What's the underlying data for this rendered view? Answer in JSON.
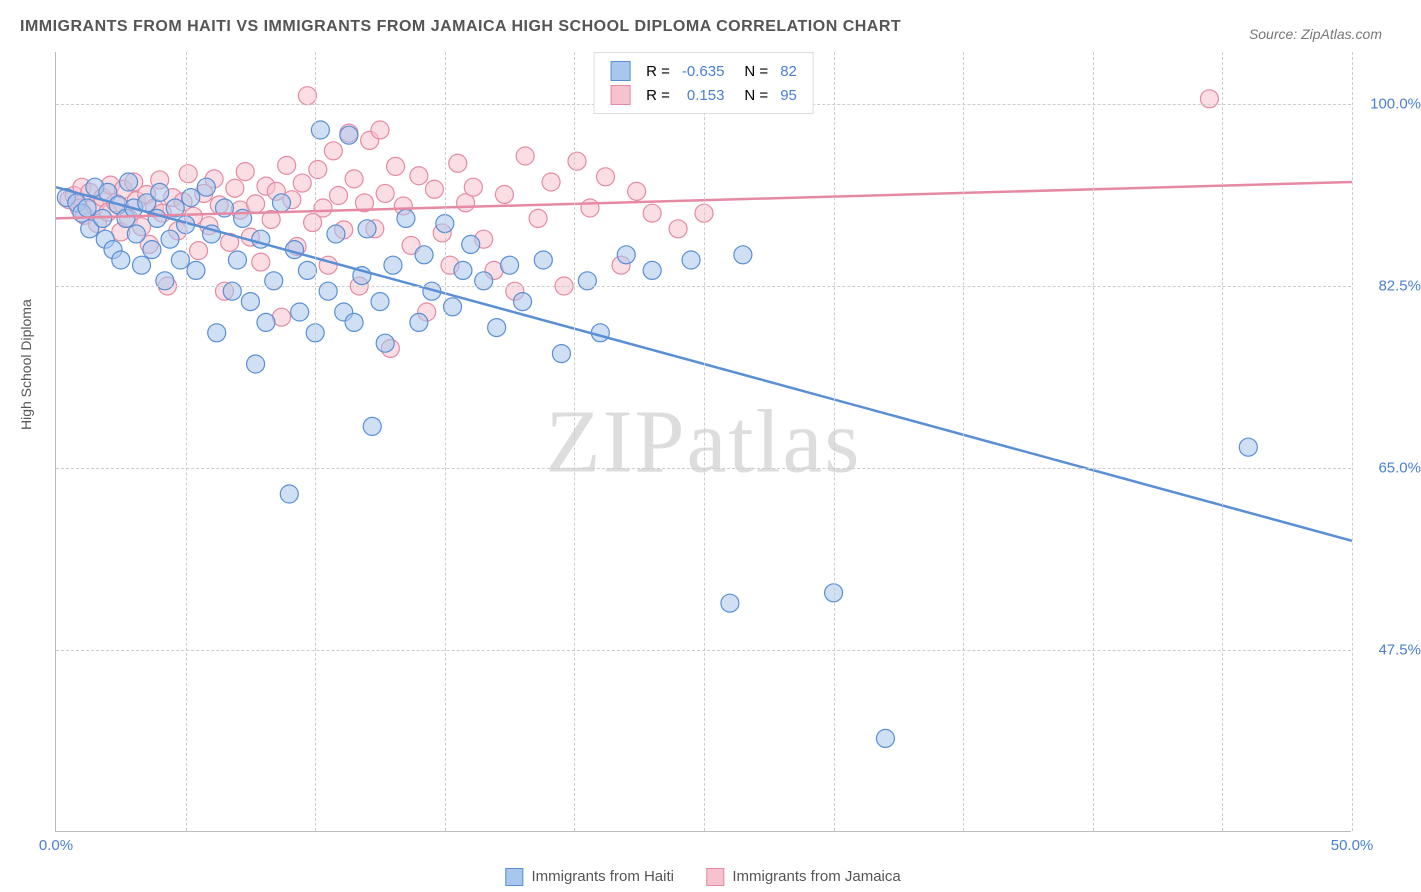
{
  "title": "IMMIGRANTS FROM HAITI VS IMMIGRANTS FROM JAMAICA HIGH SCHOOL DIPLOMA CORRELATION CHART",
  "source": "Source: ZipAtlas.com",
  "watermark": {
    "a": "ZIP",
    "b": "atlas"
  },
  "chart": {
    "type": "scatter",
    "ylabel": "High School Diploma",
    "xlim": [
      0,
      50
    ],
    "ylim": [
      30,
      105
    ],
    "yticks": [
      47.5,
      65.0,
      82.5,
      100.0
    ],
    "ytick_labels": [
      "47.5%",
      "65.0%",
      "82.5%",
      "100.0%"
    ],
    "xticks": [
      0,
      50
    ],
    "xtick_labels": [
      "0.0%",
      "50.0%"
    ],
    "xminor_step": 5,
    "grid_color": "#cccccc",
    "axis_color": "#bbbbbb",
    "tick_label_color": "#4a7fd4",
    "marker_radius": 9,
    "marker_opacity": 0.55,
    "series": [
      {
        "id": "haiti",
        "name": "Immigrants from Haiti",
        "fill": "#a8c7ec",
        "stroke": "#5a8fd6",
        "R": "-0.635",
        "N": "82",
        "trend": {
          "x1": 0,
          "y1": 92,
          "x2": 50,
          "y2": 58
        },
        "points": [
          [
            0.4,
            91
          ],
          [
            0.8,
            90.5
          ],
          [
            1.0,
            89.5
          ],
          [
            1.2,
            90
          ],
          [
            1.3,
            88
          ],
          [
            1.5,
            92
          ],
          [
            1.8,
            89
          ],
          [
            1.9,
            87
          ],
          [
            2.0,
            91.5
          ],
          [
            2.2,
            86
          ],
          [
            2.4,
            90.3
          ],
          [
            2.5,
            85
          ],
          [
            2.7,
            89
          ],
          [
            2.8,
            92.5
          ],
          [
            3.0,
            90
          ],
          [
            3.1,
            87.5
          ],
          [
            3.3,
            84.5
          ],
          [
            3.5,
            90.5
          ],
          [
            3.7,
            86
          ],
          [
            3.9,
            89
          ],
          [
            4.0,
            91.5
          ],
          [
            4.2,
            83
          ],
          [
            4.4,
            87
          ],
          [
            4.6,
            90
          ],
          [
            4.8,
            85
          ],
          [
            5.0,
            88.4
          ],
          [
            5.2,
            91
          ],
          [
            5.4,
            84
          ],
          [
            5.8,
            92
          ],
          [
            6.0,
            87.5
          ],
          [
            6.2,
            78
          ],
          [
            6.5,
            90
          ],
          [
            6.8,
            82
          ],
          [
            7.0,
            85
          ],
          [
            7.2,
            89
          ],
          [
            7.5,
            81
          ],
          [
            7.7,
            75
          ],
          [
            7.9,
            87
          ],
          [
            8.1,
            79
          ],
          [
            8.4,
            83
          ],
          [
            8.7,
            90.5
          ],
          [
            9.0,
            62.5
          ],
          [
            9.2,
            86
          ],
          [
            9.4,
            80
          ],
          [
            9.7,
            84
          ],
          [
            10.0,
            78
          ],
          [
            10.2,
            97.5
          ],
          [
            10.5,
            82
          ],
          [
            10.8,
            87.5
          ],
          [
            11.1,
            80
          ],
          [
            11.3,
            97
          ],
          [
            11.5,
            79
          ],
          [
            11.8,
            83.5
          ],
          [
            12.0,
            88
          ],
          [
            12.2,
            69
          ],
          [
            12.5,
            81
          ],
          [
            12.7,
            77
          ],
          [
            13.0,
            84.5
          ],
          [
            13.5,
            89
          ],
          [
            14.0,
            79
          ],
          [
            14.2,
            85.5
          ],
          [
            14.5,
            82
          ],
          [
            15.0,
            88.5
          ],
          [
            15.3,
            80.5
          ],
          [
            15.7,
            84
          ],
          [
            16.0,
            86.5
          ],
          [
            16.5,
            83
          ],
          [
            17.0,
            78.5
          ],
          [
            17.5,
            84.5
          ],
          [
            18.0,
            81
          ],
          [
            18.8,
            85
          ],
          [
            19.5,
            76
          ],
          [
            20.5,
            83
          ],
          [
            21.0,
            78
          ],
          [
            22.0,
            85.5
          ],
          [
            23.0,
            84
          ],
          [
            24.5,
            85
          ],
          [
            26.0,
            52
          ],
          [
            26.5,
            85.5
          ],
          [
            30.0,
            53
          ],
          [
            32.0,
            39
          ],
          [
            46.0,
            67
          ]
        ]
      },
      {
        "id": "jamaica",
        "name": "Immigrants from Jamaica",
        "fill": "#f5c2ce",
        "stroke": "#e68aa3",
        "R": "0.153",
        "N": "95",
        "trend": {
          "x1": 0,
          "y1": 89,
          "x2": 50,
          "y2": 92.5
        },
        "points": [
          [
            0.5,
            90.8
          ],
          [
            0.7,
            91.2
          ],
          [
            0.9,
            90
          ],
          [
            1.0,
            92
          ],
          [
            1.1,
            89.3
          ],
          [
            1.3,
            91.5
          ],
          [
            1.5,
            90.2
          ],
          [
            1.6,
            88.5
          ],
          [
            1.8,
            91
          ],
          [
            2.0,
            89.6
          ],
          [
            2.1,
            92.2
          ],
          [
            2.3,
            90.5
          ],
          [
            2.5,
            87.7
          ],
          [
            2.6,
            91.8
          ],
          [
            2.8,
            89
          ],
          [
            3.0,
            92.5
          ],
          [
            3.1,
            90.7
          ],
          [
            3.3,
            88.2
          ],
          [
            3.5,
            91.3
          ],
          [
            3.6,
            86.5
          ],
          [
            3.8,
            90
          ],
          [
            4.0,
            92.7
          ],
          [
            4.1,
            89.5
          ],
          [
            4.3,
            82.5
          ],
          [
            4.5,
            91
          ],
          [
            4.7,
            87.8
          ],
          [
            4.9,
            90.6
          ],
          [
            5.1,
            93.3
          ],
          [
            5.3,
            89.2
          ],
          [
            5.5,
            85.9
          ],
          [
            5.7,
            91.4
          ],
          [
            5.9,
            88.3
          ],
          [
            6.1,
            92.8
          ],
          [
            6.3,
            90.3
          ],
          [
            6.5,
            82
          ],
          [
            6.7,
            86.7
          ],
          [
            6.9,
            91.9
          ],
          [
            7.1,
            89.8
          ],
          [
            7.3,
            93.5
          ],
          [
            7.5,
            87.2
          ],
          [
            7.7,
            90.4
          ],
          [
            7.9,
            84.8
          ],
          [
            8.1,
            92.1
          ],
          [
            8.3,
            88.9
          ],
          [
            8.5,
            91.6
          ],
          [
            8.7,
            79.5
          ],
          [
            8.9,
            94.1
          ],
          [
            9.1,
            90.8
          ],
          [
            9.3,
            86.3
          ],
          [
            9.5,
            92.4
          ],
          [
            9.7,
            100.8
          ],
          [
            9.9,
            88.6
          ],
          [
            10.1,
            93.7
          ],
          [
            10.3,
            90
          ],
          [
            10.5,
            84.5
          ],
          [
            10.7,
            95.5
          ],
          [
            10.9,
            91.2
          ],
          [
            11.1,
            87.9
          ],
          [
            11.3,
            97.2
          ],
          [
            11.5,
            92.8
          ],
          [
            11.7,
            82.5
          ],
          [
            11.9,
            90.5
          ],
          [
            12.1,
            96.5
          ],
          [
            12.3,
            88
          ],
          [
            12.5,
            97.5
          ],
          [
            12.7,
            91.4
          ],
          [
            12.9,
            76.5
          ],
          [
            13.1,
            94
          ],
          [
            13.4,
            90.2
          ],
          [
            13.7,
            86.4
          ],
          [
            14.0,
            93.1
          ],
          [
            14.3,
            80
          ],
          [
            14.6,
            91.8
          ],
          [
            14.9,
            87.6
          ],
          [
            15.2,
            84.5
          ],
          [
            15.5,
            94.3
          ],
          [
            15.8,
            90.5
          ],
          [
            16.1,
            92
          ],
          [
            16.5,
            87
          ],
          [
            16.9,
            84
          ],
          [
            17.3,
            91.3
          ],
          [
            17.7,
            82
          ],
          [
            18.1,
            95
          ],
          [
            18.6,
            89
          ],
          [
            19.1,
            92.5
          ],
          [
            19.6,
            82.5
          ],
          [
            20.1,
            94.5
          ],
          [
            20.6,
            90
          ],
          [
            21.2,
            93
          ],
          [
            21.8,
            84.5
          ],
          [
            22.4,
            91.6
          ],
          [
            23.0,
            89.5
          ],
          [
            24.0,
            88
          ],
          [
            25.0,
            89.5
          ],
          [
            44.5,
            100.5
          ]
        ]
      }
    ],
    "legend_top": {
      "R_label": "R =",
      "N_label": "N ="
    },
    "legend_bottom": [
      "Immigrants from Haiti",
      "Immigrants from Jamaica"
    ]
  }
}
